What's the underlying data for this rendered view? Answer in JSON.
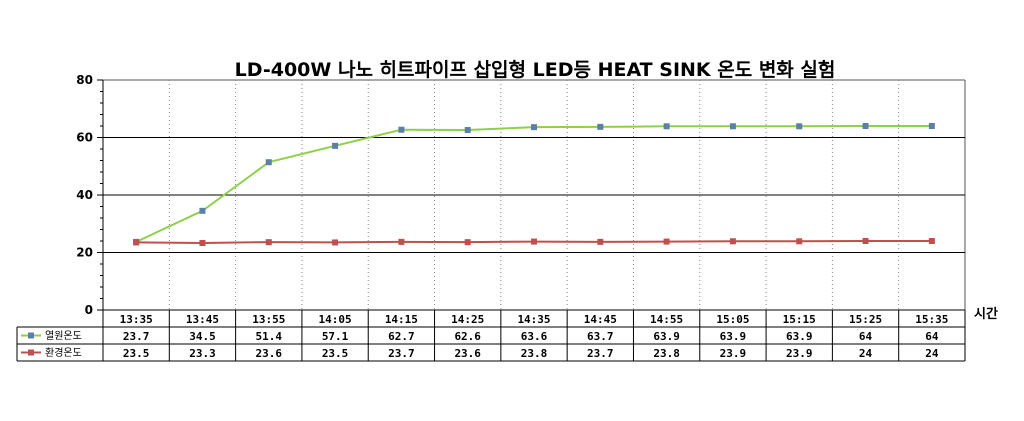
{
  "chart_data": {
    "type": "line",
    "title": "LD-400W 나노 히트파이프 삽입형 LED등 HEAT SINK 온도 변화 실험",
    "xlabel": "시간",
    "ylabel": "",
    "categories": [
      "13:35",
      "13:45",
      "13:55",
      "14:05",
      "14:15",
      "14:25",
      "14:35",
      "14:45",
      "14:55",
      "15:05",
      "15:15",
      "15:25",
      "15:35"
    ],
    "ylim": [
      0,
      80
    ],
    "yticks": [
      "0",
      "20",
      "40",
      "60",
      "80"
    ],
    "grid": true,
    "legend": "bottom-left data table",
    "series": [
      {
        "name": "열원온도",
        "color": "#8ed04a",
        "marker_color": "#5b7fa6",
        "values": [
          23.7,
          34.5,
          51.4,
          57.1,
          62.7,
          62.6,
          63.6,
          63.7,
          63.9,
          63.9,
          63.9,
          64,
          64
        ],
        "labels": [
          "23.7",
          "34.5",
          "51.4",
          "57.1",
          "62.7",
          "62.6",
          "63.6",
          "63.7",
          "63.9",
          "63.9",
          "63.9",
          "64",
          "64"
        ]
      },
      {
        "name": "환경온도",
        "color": "#c0504d",
        "marker_color": "#c0504d",
        "values": [
          23.5,
          23.3,
          23.6,
          23.5,
          23.7,
          23.6,
          23.8,
          23.7,
          23.8,
          23.9,
          23.9,
          24,
          24
        ],
        "labels": [
          "23.5",
          "23.3",
          "23.6",
          "23.5",
          "23.7",
          "23.6",
          "23.8",
          "23.7",
          "23.8",
          "23.9",
          "23.9",
          "24",
          "24"
        ]
      }
    ]
  }
}
